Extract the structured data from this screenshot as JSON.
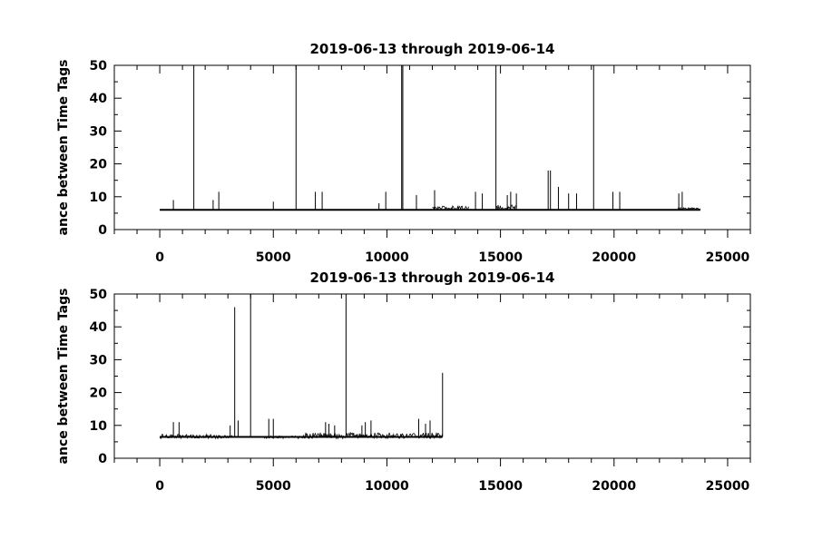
{
  "chart_data": [
    {
      "type": "line",
      "title": "2019-06-13 through 2019-06-14",
      "ylabel": "ance between Time Tags",
      "xlim": [
        -2000,
        26000
      ],
      "ylim": [
        0,
        50
      ],
      "xticks": [
        0,
        5000,
        10000,
        15000,
        20000,
        25000
      ],
      "xtick_labels": [
        "0",
        "5000",
        "10000",
        "15000",
        "20000",
        "25000"
      ],
      "yticks": [
        0,
        10,
        20,
        30,
        40,
        50
      ],
      "ytick_labels": [
        "0",
        "10",
        "20",
        "30",
        "40",
        "50"
      ],
      "series": [
        {
          "color": "#000000",
          "baseline": {
            "x_start": 0,
            "x_end": 23800,
            "y": 6
          },
          "noisy_segments": [
            {
              "x_start": 12000,
              "x_end": 13600,
              "y_low": 6,
              "y_high": 7.2
            },
            {
              "x_start": 14800,
              "x_end": 15700,
              "y_low": 6,
              "y_high": 7.5
            },
            {
              "x_start": 22800,
              "x_end": 23800,
              "y_low": 6,
              "y_high": 6.8
            }
          ],
          "spikes": [
            {
              "x": 600,
              "y": 9
            },
            {
              "x": 1500,
              "y": 50
            },
            {
              "x": 2350,
              "y": 9
            },
            {
              "x": 2600,
              "y": 11.5
            },
            {
              "x": 5000,
              "y": 8.5
            },
            {
              "x": 6000,
              "y": 50
            },
            {
              "x": 6850,
              "y": 11.5
            },
            {
              "x": 7150,
              "y": 11.5
            },
            {
              "x": 9650,
              "y": 8
            },
            {
              "x": 9950,
              "y": 11.5
            },
            {
              "x": 10650,
              "y": 50
            },
            {
              "x": 10700,
              "y": 50
            },
            {
              "x": 11300,
              "y": 10.5
            },
            {
              "x": 12100,
              "y": 12
            },
            {
              "x": 13900,
              "y": 11.5
            },
            {
              "x": 14200,
              "y": 11
            },
            {
              "x": 14800,
              "y": 50
            },
            {
              "x": 15300,
              "y": 10.5
            },
            {
              "x": 15450,
              "y": 11.5
            },
            {
              "x": 15700,
              "y": 11
            },
            {
              "x": 17100,
              "y": 18
            },
            {
              "x": 17200,
              "y": 18
            },
            {
              "x": 17550,
              "y": 13
            },
            {
              "x": 18000,
              "y": 11
            },
            {
              "x": 18350,
              "y": 11
            },
            {
              "x": 19100,
              "y": 50
            },
            {
              "x": 19950,
              "y": 11.5
            },
            {
              "x": 20250,
              "y": 11.5
            },
            {
              "x": 22850,
              "y": 11
            },
            {
              "x": 23000,
              "y": 11.5
            }
          ]
        }
      ]
    },
    {
      "type": "line",
      "title": "2019-06-13 through 2019-06-14",
      "ylabel": "ance between Time Tags",
      "xlim": [
        -2000,
        26000
      ],
      "ylim": [
        0,
        50
      ],
      "xticks": [
        0,
        5000,
        10000,
        15000,
        20000,
        25000
      ],
      "xtick_labels": [
        "0",
        "5000",
        "10000",
        "15000",
        "20000",
        "25000"
      ],
      "yticks": [
        0,
        10,
        20,
        30,
        40,
        50
      ],
      "ytick_labels": [
        "0",
        "10",
        "20",
        "30",
        "40",
        "50"
      ],
      "series": [
        {
          "color": "#000000",
          "baseline": {
            "x_start": 0,
            "x_end": 12450,
            "y": 6.5
          },
          "noisy_segments": [
            {
              "x_start": 0,
              "x_end": 2300,
              "y_low": 6,
              "y_high": 7.3
            },
            {
              "x_start": 2300,
              "x_end": 3200,
              "y_low": 6,
              "y_high": 7
            },
            {
              "x_start": 4600,
              "x_end": 6300,
              "y_low": 6,
              "y_high": 6.8
            },
            {
              "x_start": 6300,
              "x_end": 12450,
              "y_low": 6,
              "y_high": 7.8
            }
          ],
          "spikes": [
            {
              "x": 600,
              "y": 11
            },
            {
              "x": 850,
              "y": 11
            },
            {
              "x": 3100,
              "y": 10
            },
            {
              "x": 3300,
              "y": 46
            },
            {
              "x": 3450,
              "y": 11.5
            },
            {
              "x": 4000,
              "y": 50
            },
            {
              "x": 4800,
              "y": 12
            },
            {
              "x": 5000,
              "y": 12
            },
            {
              "x": 7300,
              "y": 11
            },
            {
              "x": 7450,
              "y": 10.5
            },
            {
              "x": 7700,
              "y": 10
            },
            {
              "x": 8200,
              "y": 50
            },
            {
              "x": 8900,
              "y": 10
            },
            {
              "x": 9050,
              "y": 11
            },
            {
              "x": 9300,
              "y": 11.5
            },
            {
              "x": 11400,
              "y": 12
            },
            {
              "x": 11700,
              "y": 10.5
            },
            {
              "x": 11900,
              "y": 11.5
            },
            {
              "x": 12450,
              "y": 26
            }
          ]
        }
      ]
    }
  ]
}
